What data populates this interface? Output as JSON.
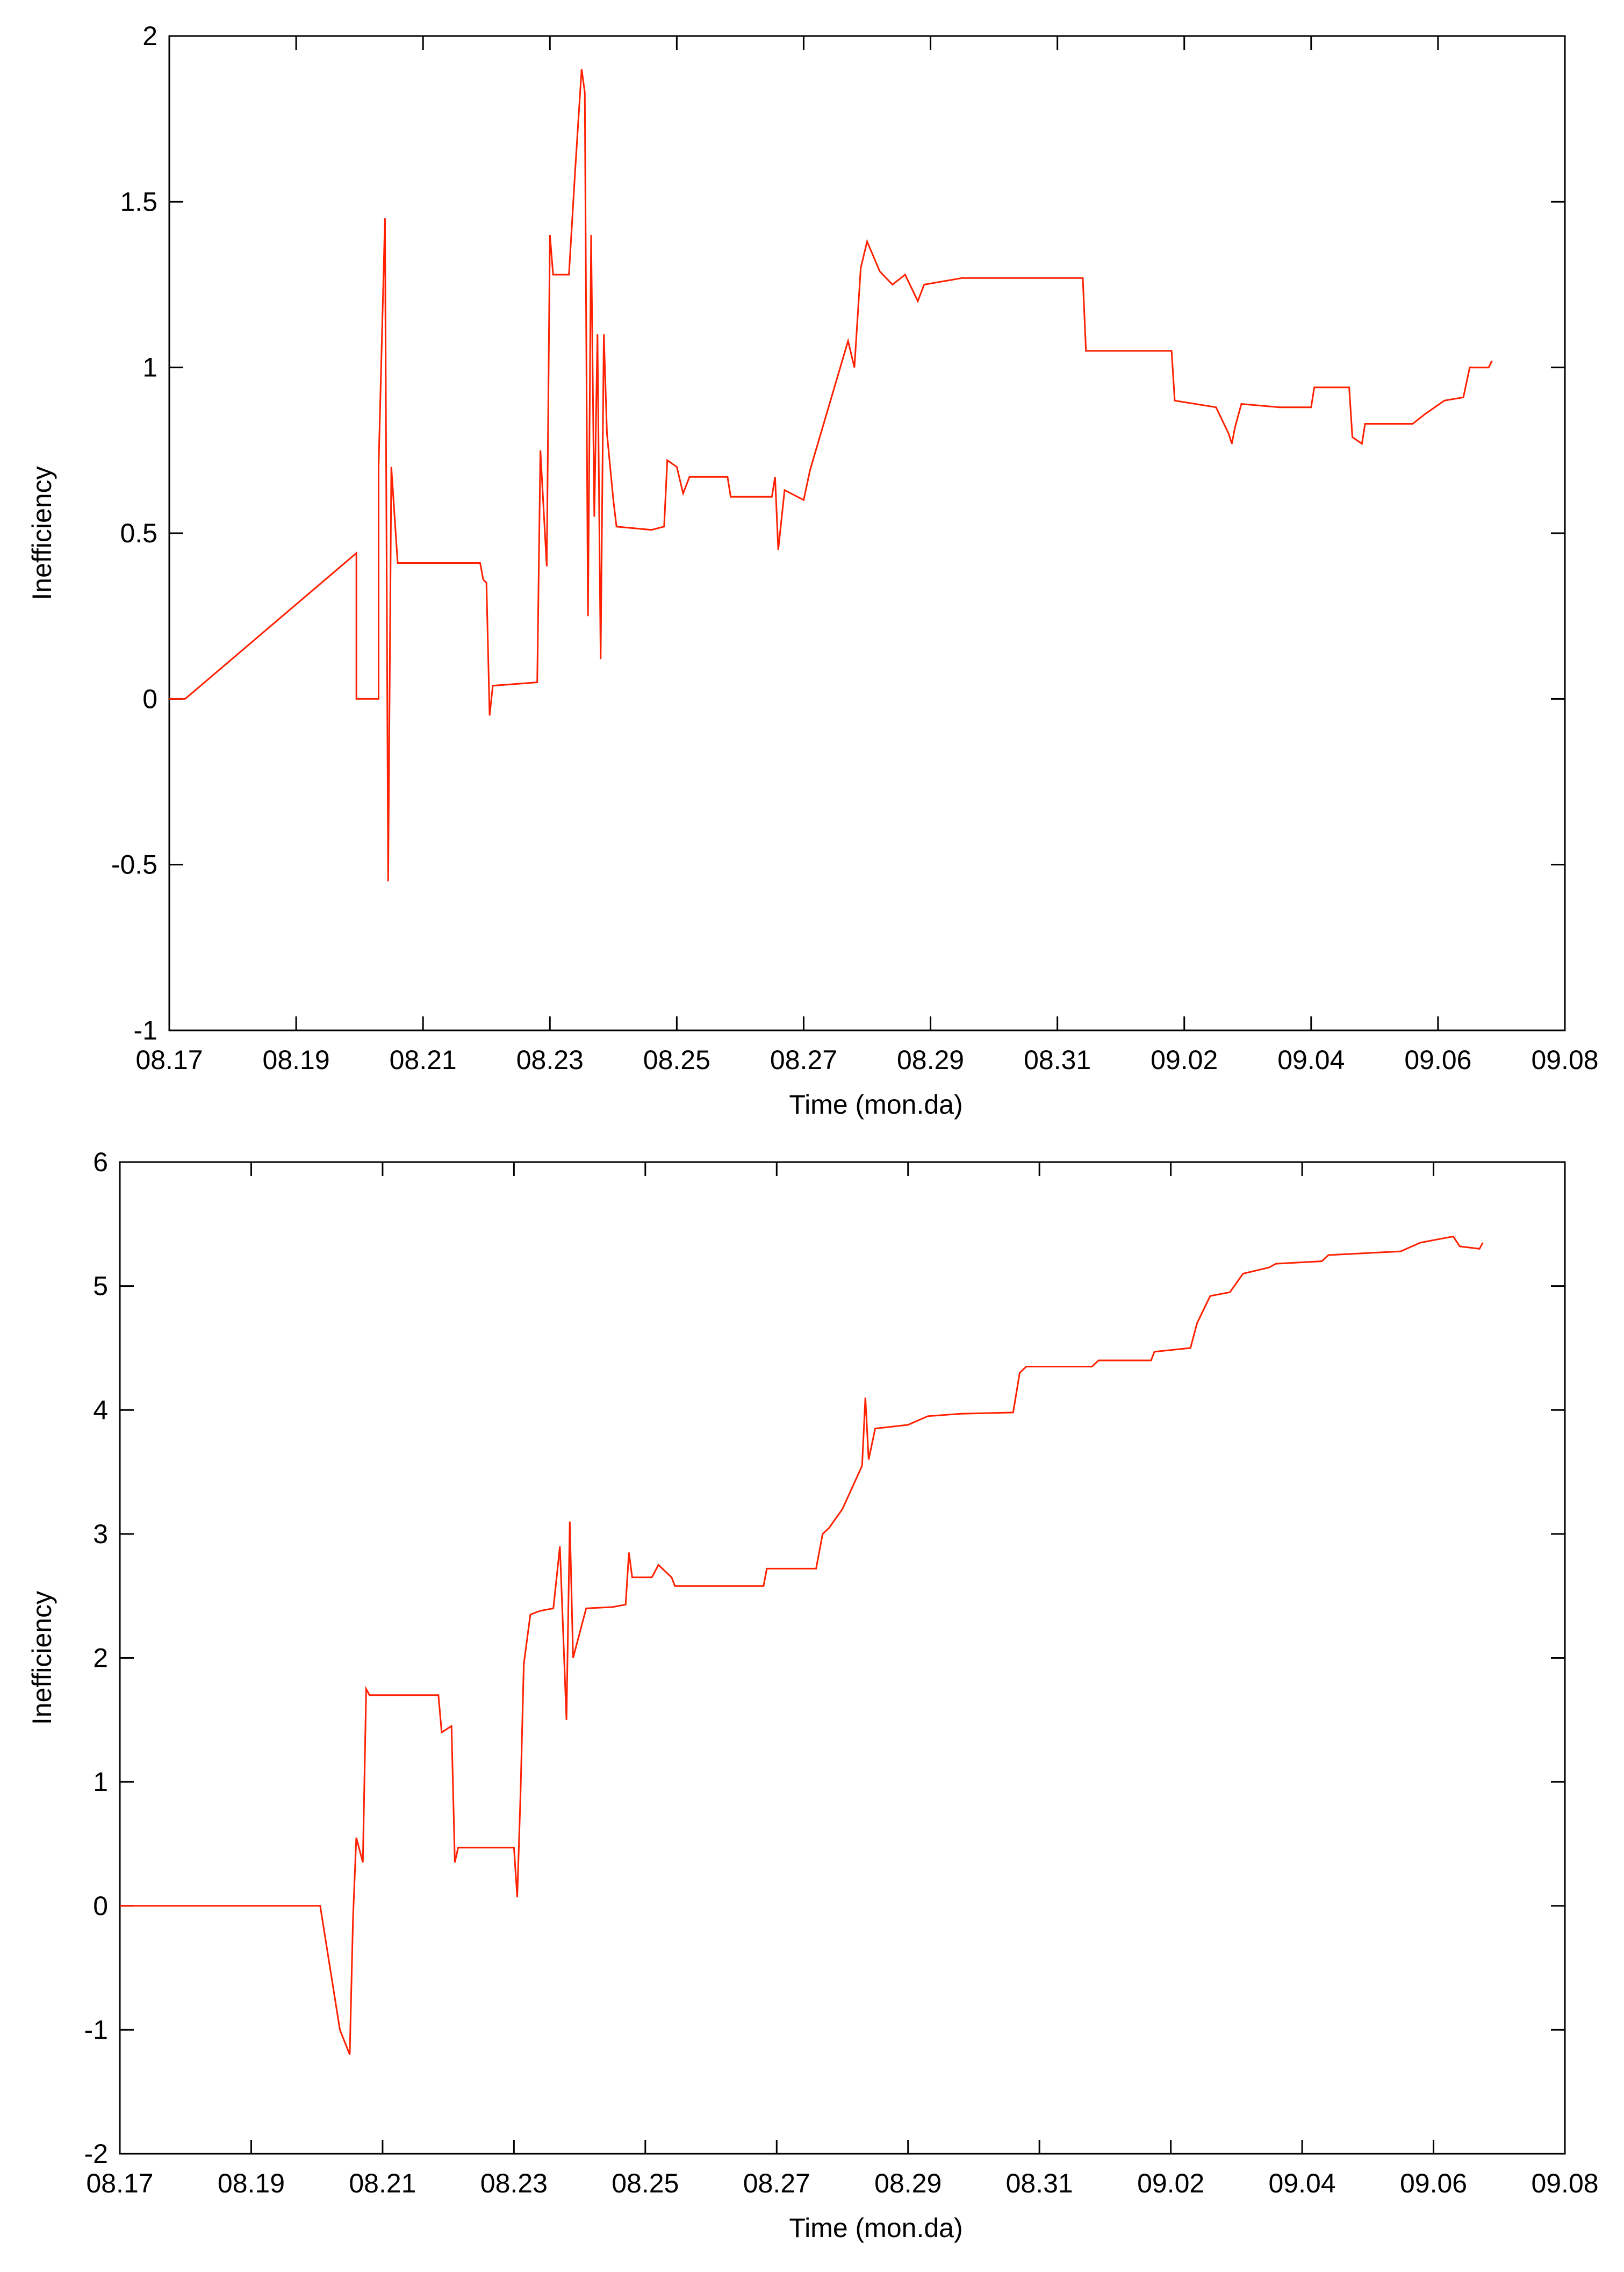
{
  "chart_data": [
    {
      "type": "line",
      "color": "#ff2000",
      "xlabel": "Time (mon.da)",
      "ylabel": "Inefficiency",
      "xlim": [
        0,
        22
      ],
      "ylim": [
        -1,
        2
      ],
      "xticks": [
        {
          "value": 0,
          "label": "08.17"
        },
        {
          "value": 2,
          "label": "08.19"
        },
        {
          "value": 4,
          "label": "08.21"
        },
        {
          "value": 6,
          "label": "08.23"
        },
        {
          "value": 8,
          "label": "08.25"
        },
        {
          "value": 10,
          "label": "08.27"
        },
        {
          "value": 12,
          "label": "08.29"
        },
        {
          "value": 14,
          "label": "08.31"
        },
        {
          "value": 16,
          "label": "09.02"
        },
        {
          "value": 18,
          "label": "09.04"
        },
        {
          "value": 20,
          "label": "09.06"
        },
        {
          "value": 22,
          "label": "09.08"
        }
      ],
      "yticks": [
        -1,
        -0.5,
        0,
        0.5,
        1,
        1.5,
        2
      ],
      "x": [
        0,
        0.25,
        2.95,
        2.95,
        3.3,
        3.3,
        3.4,
        3.45,
        3.5,
        3.6,
        4.9,
        4.95,
        5.0,
        5.05,
        5.1,
        5.8,
        5.85,
        5.95,
        6.0,
        6.05,
        6.3,
        6.4,
        6.5,
        6.55,
        6.6,
        6.65,
        6.7,
        6.75,
        6.8,
        6.85,
        6.9,
        7.0,
        7.05,
        7.6,
        7.8,
        7.85,
        8.0,
        8.1,
        8.2,
        8.8,
        8.85,
        9.5,
        9.55,
        9.6,
        9.7,
        10.0,
        10.1,
        10.7,
        10.8,
        10.9,
        11.0,
        11.2,
        11.4,
        11.6,
        11.8,
        11.9,
        12.5,
        13.0,
        14.4,
        14.45,
        15.8,
        15.85,
        16.5,
        16.7,
        16.75,
        16.8,
        16.9,
        17.5,
        18.0,
        18.05,
        18.6,
        18.65,
        18.8,
        18.85,
        19.6,
        19.8,
        20.1,
        20.4,
        20.5,
        20.8,
        20.85
      ],
      "values": [
        0,
        0,
        0.44,
        0,
        0,
        0.7,
        1.45,
        -0.55,
        0.7,
        0.41,
        0.41,
        0.36,
        0.35,
        -0.05,
        0.04,
        0.05,
        0.75,
        0.4,
        1.4,
        1.28,
        1.28,
        1.6,
        1.9,
        1.83,
        0.25,
        1.4,
        0.55,
        1.1,
        0.12,
        1.1,
        0.8,
        0.6,
        0.52,
        0.51,
        0.52,
        0.72,
        0.7,
        0.62,
        0.67,
        0.67,
        0.61,
        0.61,
        0.67,
        0.45,
        0.63,
        0.6,
        0.69,
        1.08,
        1.0,
        1.3,
        1.38,
        1.29,
        1.25,
        1.28,
        1.2,
        1.25,
        1.27,
        1.27,
        1.27,
        1.05,
        1.05,
        0.9,
        0.88,
        0.8,
        0.77,
        0.82,
        0.89,
        0.88,
        0.88,
        0.94,
        0.94,
        0.79,
        0.77,
        0.83,
        0.83,
        0.86,
        0.9,
        0.91,
        1.0,
        1.0,
        1.02
      ]
    },
    {
      "type": "line",
      "color": "#ff2000",
      "xlabel": "Time (mon.da)",
      "ylabel": "Inefficiency",
      "xlim": [
        0,
        22
      ],
      "ylim": [
        -2,
        6
      ],
      "xticks": [
        {
          "value": 0,
          "label": "08.17"
        },
        {
          "value": 2,
          "label": "08.19"
        },
        {
          "value": 4,
          "label": "08.21"
        },
        {
          "value": 6,
          "label": "08.23"
        },
        {
          "value": 8,
          "label": "08.25"
        },
        {
          "value": 10,
          "label": "08.27"
        },
        {
          "value": 12,
          "label": "08.29"
        },
        {
          "value": 14,
          "label": "08.31"
        },
        {
          "value": 16,
          "label": "09.02"
        },
        {
          "value": 18,
          "label": "09.04"
        },
        {
          "value": 20,
          "label": "09.06"
        },
        {
          "value": 22,
          "label": "09.08"
        }
      ],
      "yticks": [
        -2,
        -1,
        0,
        1,
        2,
        3,
        4,
        5,
        6
      ],
      "x": [
        0,
        3.05,
        3.35,
        3.5,
        3.55,
        3.6,
        3.7,
        3.75,
        3.8,
        4.85,
        4.9,
        5.05,
        5.1,
        5.15,
        6.0,
        6.05,
        6.1,
        6.15,
        6.25,
        6.4,
        6.6,
        6.7,
        6.8,
        6.85,
        6.9,
        7.0,
        7.1,
        7.5,
        7.7,
        7.75,
        7.8,
        8.1,
        8.2,
        8.4,
        8.45,
        9.8,
        9.85,
        10.6,
        10.7,
        10.8,
        11.0,
        11.3,
        11.35,
        11.4,
        11.5,
        12.0,
        12.3,
        12.8,
        13.6,
        13.7,
        13.8,
        14.8,
        14.9,
        15.7,
        15.75,
        16.3,
        16.4,
        16.6,
        16.9,
        17.1,
        17.5,
        17.6,
        18.3,
        18.4,
        19.5,
        19.8,
        20.3,
        20.4,
        20.7,
        20.75
      ],
      "values": [
        0,
        0,
        -1.0,
        -1.2,
        -0.1,
        0.55,
        0.35,
        1.75,
        1.7,
        1.7,
        1.4,
        1.45,
        0.35,
        0.47,
        0.47,
        0.07,
        0.9,
        1.95,
        2.35,
        2.38,
        2.4,
        2.9,
        1.5,
        3.1,
        2.0,
        2.2,
        2.4,
        2.41,
        2.43,
        2.85,
        2.65,
        2.65,
        2.75,
        2.65,
        2.58,
        2.58,
        2.72,
        2.72,
        3.0,
        3.05,
        3.2,
        3.55,
        4.1,
        3.6,
        3.85,
        3.88,
        3.95,
        3.97,
        3.98,
        4.3,
        4.35,
        4.35,
        4.4,
        4.4,
        4.47,
        4.5,
        4.7,
        4.92,
        4.95,
        5.1,
        5.15,
        5.18,
        5.2,
        5.25,
        5.28,
        5.35,
        5.4,
        5.32,
        5.3,
        5.35
      ]
    }
  ]
}
